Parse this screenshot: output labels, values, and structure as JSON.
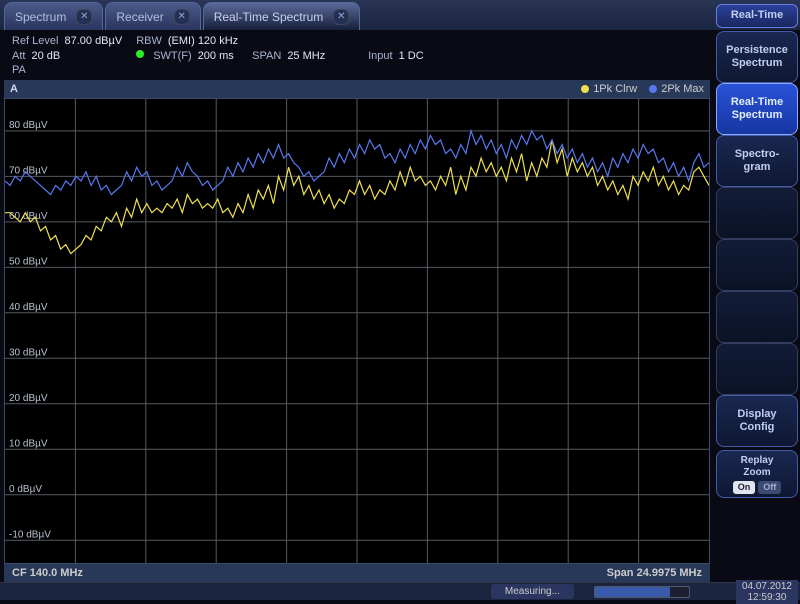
{
  "tabs": [
    {
      "label": "Spectrum",
      "active": false
    },
    {
      "label": "Receiver",
      "active": false
    },
    {
      "label": "Real-Time Spectrum",
      "active": true
    }
  ],
  "params": {
    "ref_level": {
      "label": "Ref Level",
      "value": "87.00 dBµV"
    },
    "rbw": {
      "label": "RBW",
      "value": "(EMI) 120 kHz"
    },
    "att": {
      "label": "Att",
      "value": "20 dB"
    },
    "swt": {
      "label": "SWT(F)",
      "value": "200 ms"
    },
    "span": {
      "label": "SPAN",
      "value": "25 MHz"
    },
    "input": {
      "label": "Input",
      "value": "1 DC"
    },
    "pa": {
      "label": "PA",
      "value": ""
    }
  },
  "sidebar": {
    "top": "Real-Time",
    "buttons": [
      {
        "line1": "Persistence",
        "line2": "Spectrum",
        "active": false
      },
      {
        "line1": "Real-Time",
        "line2": "Spectrum",
        "active": true
      },
      {
        "line1": "Spectro-",
        "line2": "gram",
        "active": false
      },
      {
        "empty": true
      },
      {
        "empty": true
      },
      {
        "empty": true
      },
      {
        "empty": true
      },
      {
        "line1": "Display",
        "line2": "Config",
        "active": false
      }
    ],
    "replay": {
      "label": "Replay Zoom",
      "on": "On",
      "off": "Off"
    }
  },
  "chart": {
    "title": "A",
    "legend": [
      {
        "label": "1Pk Clrw",
        "color": "#f0e050"
      },
      {
        "label": "2Pk Max",
        "color": "#5878f0"
      }
    ],
    "footer": {
      "cf": "CF 140.0 MHz",
      "span": "Span 24.9975 MHz"
    },
    "ylim": [
      -15,
      87
    ],
    "ytick_step": 10,
    "ytick_labels": [
      "-10 dBµV",
      "0 dBµV",
      "10 dBµV",
      "20 dBµV",
      "30 dBµV",
      "40 dBµV",
      "50 dBµV",
      "60 dBµV",
      "70 dBµV",
      "80 dBµV"
    ],
    "ytick_values": [
      -10,
      0,
      10,
      20,
      30,
      40,
      50,
      60,
      70,
      80
    ],
    "xgrid_count": 10,
    "grid_color": "#585e68",
    "background": "#000000",
    "series": [
      {
        "color": "#f0e050",
        "values": [
          62,
          62,
          61,
          60,
          62,
          60,
          61,
          58,
          59,
          56,
          57,
          54,
          55,
          53,
          54,
          55,
          57,
          56,
          59,
          58,
          61,
          60,
          62,
          59,
          63,
          61,
          65,
          62,
          64,
          62,
          63,
          62,
          64,
          63,
          65,
          62,
          66,
          64,
          65,
          63,
          64,
          63,
          65,
          62,
          63,
          61,
          64,
          62,
          66,
          63,
          67,
          65,
          68,
          64,
          70,
          67,
          72,
          68,
          70,
          66,
          68,
          65,
          67,
          64,
          66,
          63,
          65,
          64,
          67,
          66,
          69,
          66,
          68,
          65,
          67,
          66,
          69,
          67,
          71,
          68,
          72,
          69,
          70,
          68,
          69,
          67,
          70,
          68,
          72,
          66,
          70,
          67,
          72,
          70,
          74,
          71,
          73,
          70,
          72,
          69,
          74,
          71,
          75,
          69,
          73,
          70,
          74,
          72,
          78,
          73,
          76,
          70,
          74,
          71,
          73,
          70,
          72,
          68,
          70,
          67,
          69,
          66,
          68,
          65,
          70,
          68,
          71,
          69,
          72,
          68,
          70,
          67,
          69,
          66,
          68,
          67,
          71,
          72,
          70,
          68
        ],
        "stroke_width": 1.2
      },
      {
        "color": "#5878f0",
        "values": [
          69,
          68,
          70,
          69,
          71,
          70,
          69,
          68,
          67,
          66,
          68,
          67,
          69,
          68,
          70,
          69,
          71,
          68,
          70,
          67,
          68,
          66,
          67,
          68,
          71,
          69,
          72,
          70,
          71,
          68,
          69,
          67,
          68,
          69,
          72,
          70,
          73,
          71,
          70,
          68,
          69,
          67,
          68,
          69,
          72,
          70,
          73,
          71,
          74,
          72,
          75,
          73,
          76,
          74,
          77,
          74,
          75,
          73,
          72,
          70,
          71,
          69,
          70,
          71,
          74,
          72,
          75,
          73,
          76,
          74,
          77,
          75,
          78,
          76,
          77,
          74,
          75,
          73,
          76,
          74,
          77,
          75,
          78,
          76,
          79,
          77,
          78,
          75,
          76,
          74,
          77,
          75,
          80,
          77,
          79,
          76,
          78,
          75,
          77,
          74,
          78,
          76,
          79,
          77,
          80,
          78,
          79,
          76,
          78,
          75,
          77,
          74,
          76,
          73,
          75,
          72,
          74,
          71,
          73,
          70,
          74,
          72,
          75,
          73,
          76,
          74,
          77,
          75,
          76,
          73,
          74,
          71,
          73,
          70,
          72,
          69,
          73,
          75,
          72,
          73
        ],
        "stroke_width": 1.2
      }
    ]
  },
  "status": {
    "measuring_label": "Measuring...",
    "date": "04.07.2012",
    "time": "12:59:30",
    "watermark": ""
  }
}
